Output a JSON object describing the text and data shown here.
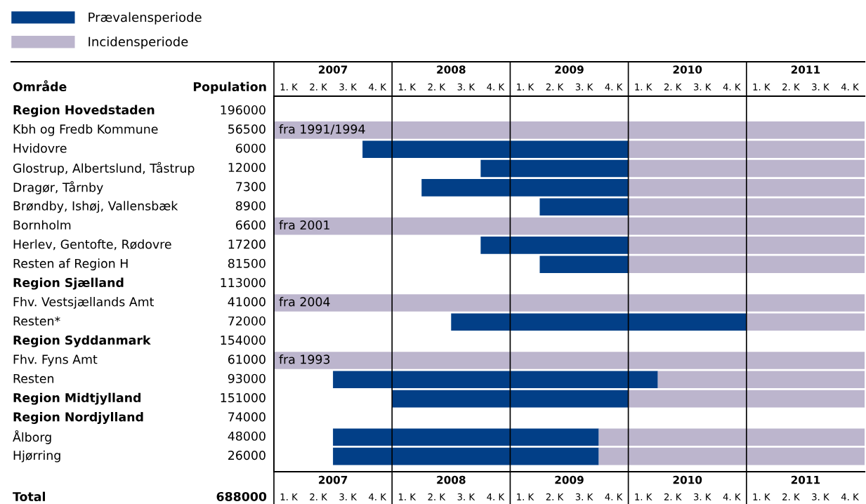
{
  "chart_data": {
    "type": "bar",
    "orientation": "horizontal",
    "ylabel": "Område",
    "legend": "top left",
    "categories": [
      "Region Hovedstaden",
      "Kbh og Fredb Kommune",
      "Hvidovre",
      "Glostrup, Albertslund, Tåstrup",
      "Dragør, Tårnby",
      "Brøndby, Ishøj, Vallensbæk",
      "Bornholm",
      "Herlev, Gentofte, Rødovre",
      "Resten af Region H",
      "Region Sjælland",
      "Fhv. Vestsjællands Amt",
      "Resten*",
      "Region Syddanmark",
      "Fhv. Fyns Amt",
      "Resten",
      "Region Midtjylland",
      "Region Nordjylland",
      "Ålborg",
      "Hjørring"
    ],
    "series": [
      {
        "name": "Prævalensperiode",
        "color": "#023f87",
        "base": [
          null,
          null,
          2007.25,
          2008.25,
          2007.75,
          2008.75,
          null,
          2008.25,
          2008.75,
          null,
          null,
          2008,
          null,
          null,
          2007,
          2007.5,
          null,
          2007,
          2007
        ],
        "values": [
          null,
          null,
          2.25,
          1.25,
          1.75,
          0.75,
          null,
          1.25,
          0.75,
          null,
          null,
          2.5,
          null,
          null,
          2.75,
          2,
          null,
          2.25,
          2.25
        ]
      },
      {
        "name": "Incidensperiode",
        "color": "#bcb5cd",
        "base": [
          null,
          2006.5,
          2009.5,
          2009.5,
          2009.5,
          2009.5,
          2006.5,
          2009.5,
          2009.5,
          null,
          2006.5,
          2010.5,
          null,
          2006.5,
          2009.75,
          2009.5,
          null,
          2009.25,
          2009.25
        ],
        "values": [
          null,
          5,
          2,
          2,
          2,
          2,
          5,
          2,
          2,
          null,
          5,
          1,
          null,
          5,
          1.75,
          2,
          null,
          2.25,
          2.25
        ]
      }
    ],
    "xlim": [
      2006.5,
      2011.5
    ],
    "xticks": [
      2007,
      2008,
      2009,
      2010,
      2011
    ],
    "x2lim": [
      2006.5,
      2011.5
    ],
    "x2ticks": [
      2007,
      2008,
      2009,
      2010,
      2011
    ],
    "ref_lines": [
      {
        "axis": "x",
        "value": 2007.5,
        "color": "#000000"
      },
      {
        "axis": "x",
        "value": 2008.5,
        "color": "#000000"
      },
      {
        "axis": "x",
        "value": 2009.5,
        "color": "#000000"
      },
      {
        "axis": "x",
        "value": 2010.5,
        "color": "#000000"
      }
    ],
    "annotations": [
      "Population",
      "Total",
      "688000",
      "1. K",
      "2. K",
      "3. K",
      "4. K",
      "196000",
      "56500",
      "6000",
      "12000",
      "7300",
      "8900",
      "6600",
      "17200",
      "81500",
      "113000",
      "41000",
      "72000",
      "154000",
      "61000",
      "93000",
      "151000",
      "74000",
      "48000",
      "26000",
      {
        "text": "fra 1991/1994",
        "y": "Kbh og Fredb Kommune"
      },
      {
        "text": "fra 2001",
        "y": "Bornholm"
      },
      {
        "text": "fra 2004",
        "y": "Fhv. Vestsjællands Amt"
      },
      {
        "text": "fra 1993",
        "y": "Fhv. Fyns Amt"
      }
    ]
  }
}
